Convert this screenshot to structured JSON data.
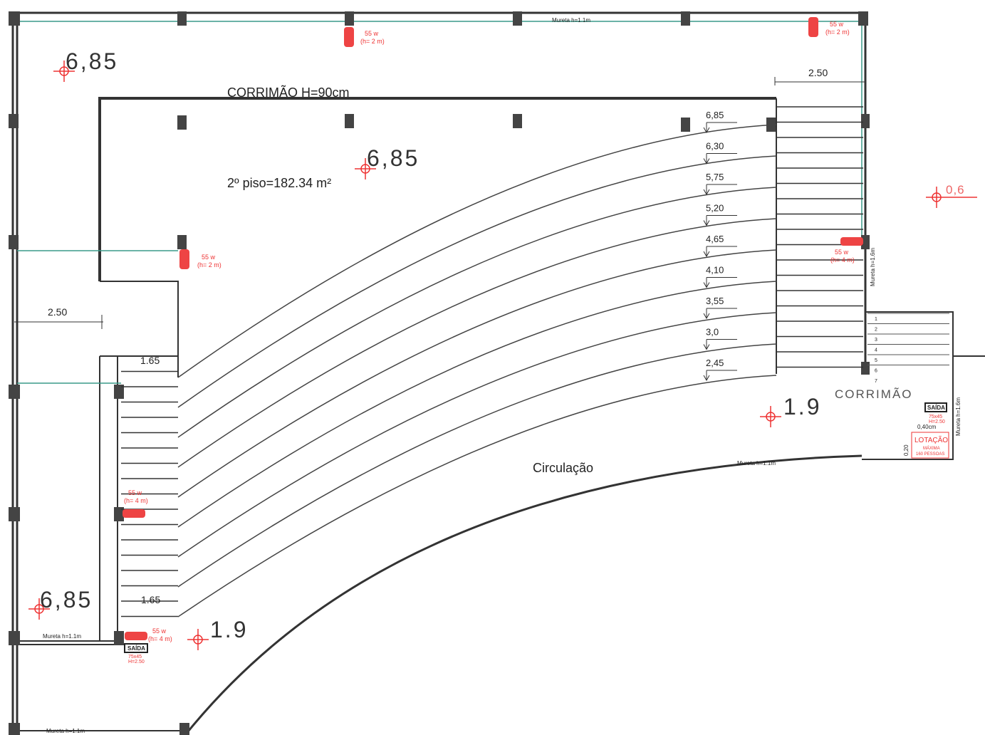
{
  "labels": {
    "handrail": "CORRIMÃO H=90cm",
    "area": "2º piso=182.34 m²",
    "circulation": "Circulação",
    "handrail_right": "CORRIMÃO"
  },
  "elevation_markers": [
    "6,85",
    "6,85",
    "6,85",
    "1.9",
    "1.9",
    "0,6"
  ],
  "step_levels": [
    "6,85",
    "6,30",
    "5,75",
    "5,20",
    "4,65",
    "4,10",
    "3,55",
    "3,0",
    "2,45"
  ],
  "dimensions": [
    "2.50",
    "2.50",
    "1.65",
    "1.65",
    "0,40cm",
    "0,20"
  ],
  "lamps": [
    {
      "power": "55 w",
      "height": "(h= 2 m)"
    },
    {
      "power": "55 w",
      "height": "(h= 2 m)"
    },
    {
      "power": "55 w",
      "height": "(h= 2 m)"
    },
    {
      "power": "55 w",
      "height": "(h= 4 m)"
    },
    {
      "power": "55 w",
      "height": "(h= 4 m)"
    },
    {
      "power": "55 w",
      "height": "(h= 4 m)"
    }
  ],
  "walls": [
    "Mureta h=1.1m",
    "Mureta h=1.1m",
    "Mureta h=1.1m",
    "Mureta h=1.1m",
    "Mureta h=1.6m",
    "Mureta h=1.6m"
  ],
  "exits": [
    {
      "label": "SAÍDA",
      "size": "75x45",
      "height": "H=2.50"
    },
    {
      "label": "SAÍDA",
      "size": "75x45",
      "height": "H=2.50"
    }
  ],
  "capacity": {
    "title": "LOTAÇÃO",
    "line1": "MÁXIMA",
    "line2": "160 PESSOAS"
  },
  "stair_numbers": [
    "1",
    "2",
    "3",
    "4",
    "5",
    "6",
    "7"
  ]
}
